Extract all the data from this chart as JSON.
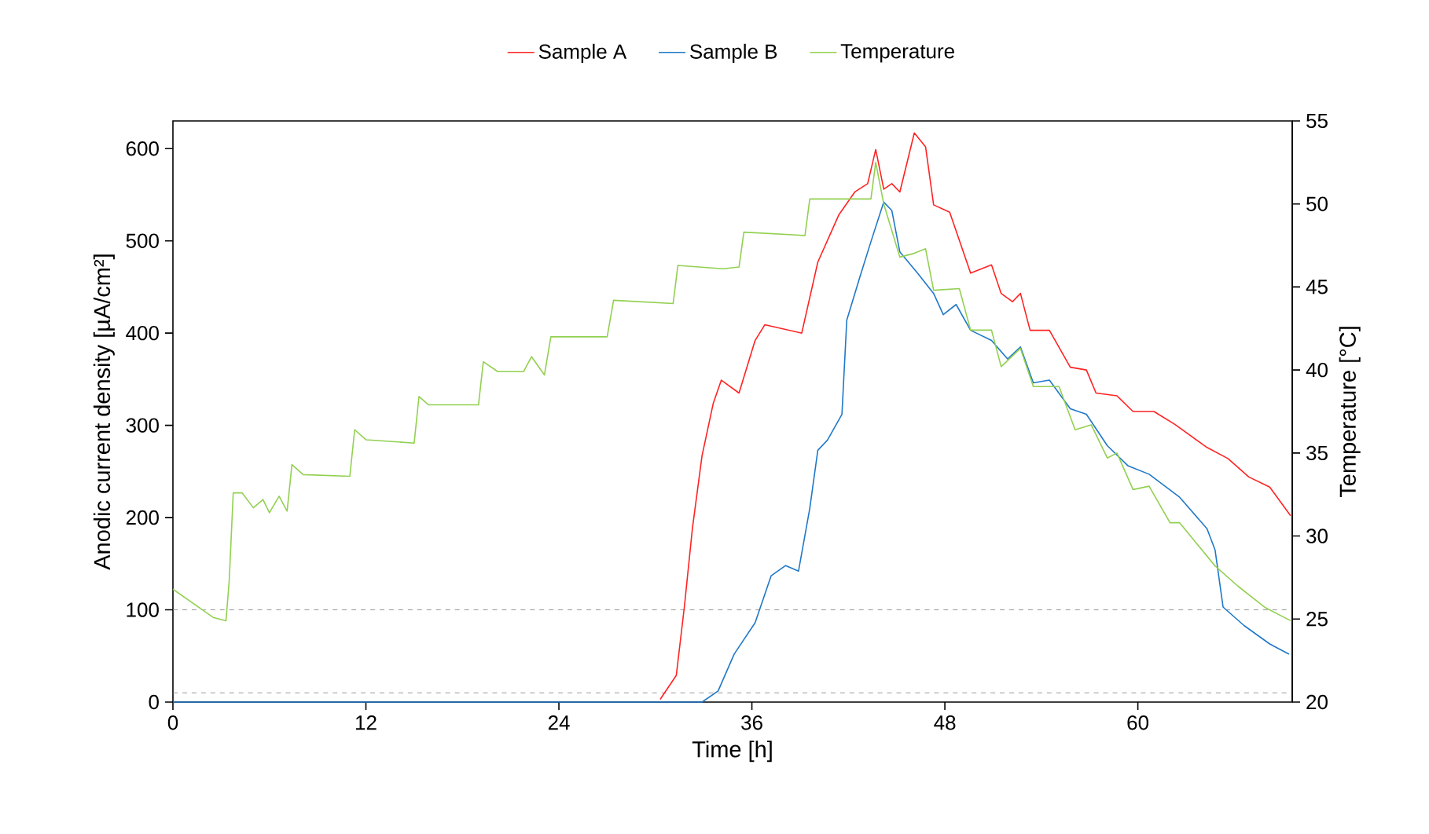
{
  "chart_data": {
    "type": "line",
    "xlabel": "Time [h]",
    "ylabel": "Anodic current density [µA/cm²]",
    "y2label": "Temperature [°C]",
    "xlim": [
      0,
      69.6
    ],
    "xticks": [
      0,
      12,
      24,
      36,
      48,
      60
    ],
    "ylim": [
      0,
      630
    ],
    "yticks": [
      0,
      100,
      200,
      300,
      400,
      500,
      600
    ],
    "y2lim": [
      20,
      55
    ],
    "y2ticks": [
      20,
      25,
      30,
      35,
      40,
      45,
      50,
      55
    ],
    "legend": "top",
    "line_style": "solid",
    "ref_lines": [
      {
        "axis": "y",
        "value": 100,
        "color": "#808080",
        "line_style": "dashed"
      },
      {
        "axis": "y",
        "value": 10,
        "color": "#808080",
        "line_style": "dashed"
      }
    ],
    "series": [
      {
        "name": "Sample A",
        "color": "#ff2222",
        "x": [
          30.3,
          31.3,
          31.8,
          32.3,
          32.9,
          33.6,
          34.1,
          35.2,
          36.2,
          36.8,
          39.1,
          40.1,
          41.4,
          42.4,
          43.2,
          43.7,
          44.2,
          44.7,
          45.2,
          46.1,
          46.8,
          47.3,
          48.3,
          49.6,
          50.9,
          51.5,
          52.2,
          52.7,
          53.3,
          54.5,
          55.8,
          56.8,
          57.4,
          58.7,
          59.7,
          61.0,
          62.3,
          64.3,
          65.6,
          66.9,
          68.2,
          69.5
        ],
        "values": [
          3,
          29,
          103,
          188,
          267,
          324,
          349,
          335,
          392,
          409,
          400,
          477,
          528,
          553,
          562,
          599,
          556,
          562,
          553,
          617,
          602,
          539,
          531,
          465,
          474,
          443,
          434,
          443,
          403,
          403,
          363,
          360,
          335,
          332,
          315,
          315,
          301,
          276,
          264,
          244,
          233,
          202
        ]
      },
      {
        "name": "Sample B",
        "color": "#1f78c8",
        "x": [
          0,
          32.9,
          33.9,
          34.9,
          36.2,
          37.2,
          38.1,
          38.9,
          39.6,
          40.1,
          40.7,
          41.6,
          41.9,
          42.7,
          43.4,
          44.2,
          44.7,
          45.2,
          46.3,
          47.3,
          47.9,
          48.7,
          49.6,
          50.9,
          51.9,
          52.7,
          53.5,
          54.5,
          55.8,
          56.8,
          58.1,
          59.4,
          60.7,
          62.6,
          64.3,
          64.8,
          65.3,
          66.6,
          68.2,
          69.4
        ],
        "values": [
          0,
          0,
          12,
          52,
          86,
          137,
          148,
          142,
          210,
          273,
          284,
          312,
          414,
          460,
          499,
          542,
          533,
          488,
          465,
          443,
          420,
          431,
          403,
          392,
          372,
          385,
          346,
          349,
          318,
          312,
          278,
          256,
          247,
          222,
          188,
          165,
          103,
          83,
          63,
          52
        ]
      },
      {
        "name": "Temperature",
        "color": "#92d050",
        "axis": "y2",
        "x": [
          0,
          2.5,
          3.3,
          3.5,
          3.75,
          4.3,
          5.0,
          5.6,
          6.0,
          6.6,
          7.1,
          7.4,
          8.1,
          11.0,
          11.3,
          12.0,
          15.0,
          15.3,
          15.9,
          19.0,
          19.3,
          20.2,
          21.8,
          22.3,
          23.1,
          23.5,
          25.1,
          27.0,
          27.4,
          31.1,
          31.4,
          34.2,
          35.2,
          35.5,
          39.3,
          39.6,
          43.4,
          43.7,
          44.2,
          45.2,
          46.0,
          46.8,
          47.3,
          48.9,
          49.6,
          50.9,
          51.5,
          52.7,
          53.5,
          55.1,
          56.1,
          57.1,
          58.1,
          58.7,
          59.7,
          60.7,
          62.0,
          62.6,
          64.8,
          66.2,
          67.9,
          69.5
        ],
        "values": [
          26.8,
          25.1,
          24.9,
          27.3,
          32.6,
          32.6,
          31.7,
          32.2,
          31.4,
          32.4,
          31.5,
          34.3,
          33.7,
          33.6,
          36.4,
          35.8,
          35.6,
          38.4,
          37.9,
          37.9,
          40.5,
          39.9,
          39.9,
          40.8,
          39.7,
          42.0,
          42.0,
          42.0,
          44.2,
          44.0,
          46.3,
          46.1,
          46.2,
          48.3,
          48.1,
          50.3,
          50.3,
          52.5,
          50.0,
          46.8,
          47.0,
          47.3,
          44.8,
          44.9,
          42.4,
          42.4,
          40.2,
          41.3,
          39.0,
          39.0,
          36.4,
          36.7,
          34.7,
          35.0,
          32.8,
          33.0,
          30.8,
          30.8,
          28.2,
          27.0,
          25.7,
          24.9
        ]
      }
    ]
  }
}
